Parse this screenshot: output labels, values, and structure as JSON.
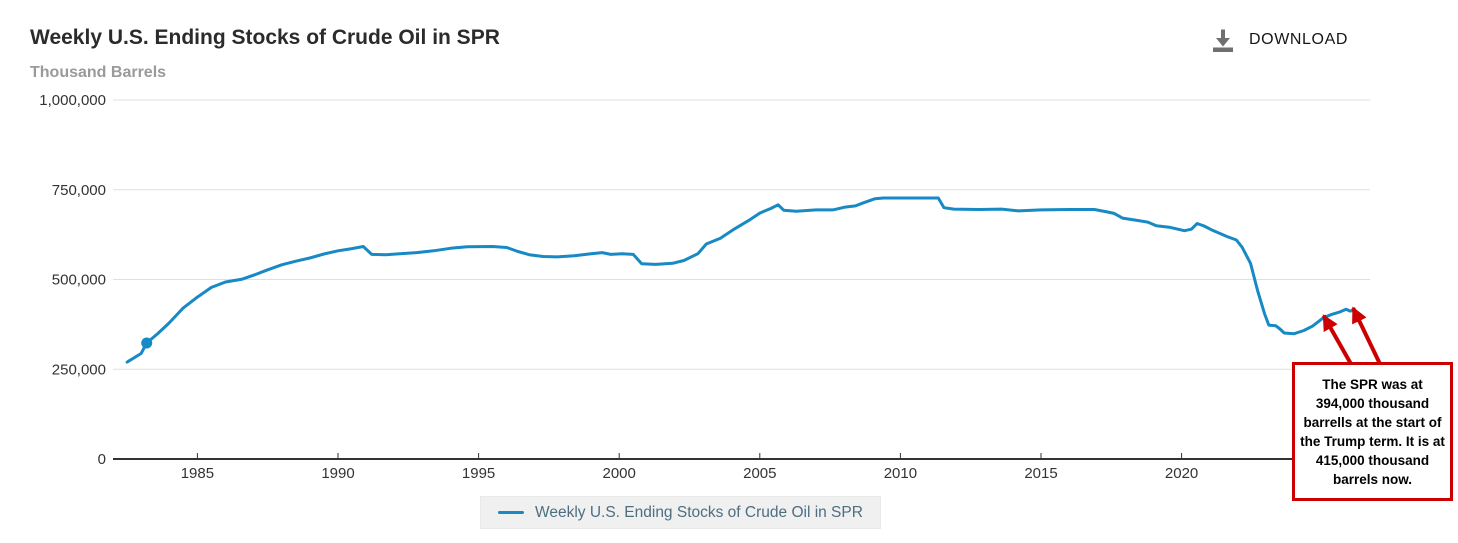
{
  "header": {
    "title": "Weekly U.S. Ending Stocks of Crude Oil in SPR",
    "subtitle": "Thousand Barrels",
    "download_label": "DOWNLOAD"
  },
  "legend": {
    "label": "Weekly U.S. Ending Stocks of Crude Oil in SPR"
  },
  "annotation": {
    "text": "The SPR was at 394,000 thousand barrells at the start of the Trump term. It is at 415,000 thousand barrels now."
  },
  "colors": {
    "line_blue": "#1789c4",
    "red": "#cc0000",
    "gridline": "#e0e0e0",
    "axis_line": "#333333",
    "axis_text": "#333333",
    "legend_text": "#4d6e80",
    "subtitle_gray": "#9a9a9a",
    "icon_gray": "#6f6f6f"
  },
  "chart_data": {
    "type": "line",
    "title": "Weekly U.S. Ending Stocks of Crude Oil in SPR",
    "xlabel": "",
    "ylabel": "Thousand Barrels",
    "xlim": [
      1982,
      2026.7
    ],
    "ylim": [
      0,
      1000000
    ],
    "x_ticks": [
      1985,
      1990,
      1995,
      2000,
      2005,
      2010,
      2015,
      2020
    ],
    "y_ticks": [
      0,
      250000,
      500000,
      750000,
      1000000
    ],
    "y_tick_labels": [
      "0",
      "250,000",
      "500,000",
      "750,000",
      "1,000,000"
    ],
    "grid": "horizontal",
    "legend_position": "bottom-center",
    "series": [
      {
        "name": "Weekly U.S. Ending Stocks of Crude Oil in SPR",
        "color": "#1789c4",
        "points": [
          [
            1982.5,
            270000
          ],
          [
            1983.0,
            294000
          ],
          [
            1983.2,
            323000
          ],
          [
            1983.6,
            350000
          ],
          [
            1984.0,
            379000
          ],
          [
            1984.5,
            421000
          ],
          [
            1985.0,
            451000
          ],
          [
            1985.5,
            478000
          ],
          [
            1986.0,
            493000
          ],
          [
            1986.6,
            501000
          ],
          [
            1987.0,
            512000
          ],
          [
            1987.5,
            527000
          ],
          [
            1988.0,
            541000
          ],
          [
            1988.5,
            551000
          ],
          [
            1989.0,
            560000
          ],
          [
            1989.5,
            571000
          ],
          [
            1990.0,
            580000
          ],
          [
            1990.5,
            586000
          ],
          [
            1990.9,
            592000
          ],
          [
            1991.2,
            570000
          ],
          [
            1991.7,
            569000
          ],
          [
            1992.2,
            572000
          ],
          [
            1992.8,
            575000
          ],
          [
            1993.4,
            580000
          ],
          [
            1994.0,
            587000
          ],
          [
            1994.6,
            591000
          ],
          [
            1995.5,
            592000
          ],
          [
            1996.0,
            589000
          ],
          [
            1996.4,
            578000
          ],
          [
            1996.8,
            569000
          ],
          [
            1997.3,
            564000
          ],
          [
            1997.8,
            563000
          ],
          [
            1998.4,
            566000
          ],
          [
            1999.0,
            572000
          ],
          [
            1999.4,
            575000
          ],
          [
            1999.7,
            570000
          ],
          [
            2000.1,
            572000
          ],
          [
            2000.5,
            570000
          ],
          [
            2000.8,
            544000
          ],
          [
            2001.3,
            542000
          ],
          [
            2001.9,
            545000
          ],
          [
            2002.3,
            553000
          ],
          [
            2002.8,
            572000
          ],
          [
            2003.1,
            599000
          ],
          [
            2003.6,
            615000
          ],
          [
            2004.1,
            641000
          ],
          [
            2004.6,
            664000
          ],
          [
            2005.0,
            685000
          ],
          [
            2005.4,
            698000
          ],
          [
            2005.65,
            708000
          ],
          [
            2005.85,
            693000
          ],
          [
            2006.3,
            690000
          ],
          [
            2007.0,
            694000
          ],
          [
            2007.6,
            694000
          ],
          [
            2008.0,
            701000
          ],
          [
            2008.4,
            705000
          ],
          [
            2008.7,
            714000
          ],
          [
            2009.1,
            725000
          ],
          [
            2009.4,
            727000
          ],
          [
            2010.5,
            727000
          ],
          [
            2011.35,
            727000
          ],
          [
            2011.55,
            700000
          ],
          [
            2011.9,
            696000
          ],
          [
            2012.8,
            695000
          ],
          [
            2013.6,
            696000
          ],
          [
            2014.2,
            691000
          ],
          [
            2015.0,
            694000
          ],
          [
            2016.0,
            695000
          ],
          [
            2016.9,
            695000
          ],
          [
            2017.3,
            689000
          ],
          [
            2017.6,
            684000
          ],
          [
            2017.9,
            671000
          ],
          [
            2018.3,
            666000
          ],
          [
            2018.8,
            660000
          ],
          [
            2019.1,
            650000
          ],
          [
            2019.6,
            645000
          ],
          [
            2020.1,
            636000
          ],
          [
            2020.35,
            640000
          ],
          [
            2020.55,
            656000
          ],
          [
            2020.8,
            649000
          ],
          [
            2021.1,
            637000
          ],
          [
            2021.6,
            620000
          ],
          [
            2021.95,
            610000
          ],
          [
            2022.15,
            590000
          ],
          [
            2022.45,
            545000
          ],
          [
            2022.7,
            470000
          ],
          [
            2022.95,
            405000
          ],
          [
            2023.1,
            373000
          ],
          [
            2023.35,
            371000
          ],
          [
            2023.5,
            362000
          ],
          [
            2023.65,
            351000
          ],
          [
            2024.0,
            349000
          ],
          [
            2024.35,
            358000
          ],
          [
            2024.65,
            370000
          ],
          [
            2024.85,
            382000
          ],
          [
            2025.05,
            394000
          ],
          [
            2025.35,
            403000
          ],
          [
            2025.6,
            409000
          ],
          [
            2025.85,
            417000
          ],
          [
            2026.0,
            412000
          ],
          [
            2026.15,
            415000
          ]
        ]
      }
    ],
    "marker_point": {
      "year": 1983.2,
      "value": 323000
    },
    "annotations": {
      "arrow_targets": [
        {
          "year": 2025.05,
          "value": 394000,
          "note": "start of Trump term"
        },
        {
          "year": 2026.1,
          "value": 415000,
          "note": "now"
        }
      ]
    }
  }
}
